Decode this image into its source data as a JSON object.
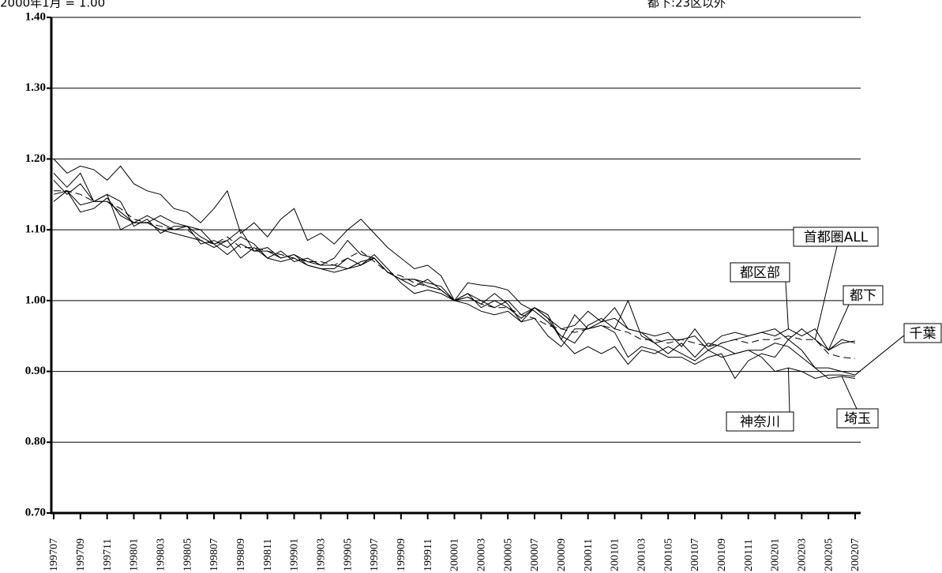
{
  "chart_data": {
    "type": "line",
    "note_left": "2000年1月 = 1.00",
    "note_right": "都下:23区以外",
    "categories": [
      "199707",
      null,
      "199709",
      null,
      "199711",
      null,
      "199801",
      null,
      "199803",
      null,
      "199805",
      null,
      "199807",
      null,
      "199809",
      null,
      "199811",
      null,
      "199901",
      null,
      "199903",
      null,
      "199905",
      null,
      "199907",
      null,
      "199909",
      null,
      "199911",
      null,
      "200001",
      null,
      "200003",
      null,
      "200005",
      null,
      "200007",
      null,
      "200009",
      null,
      "200011",
      null,
      "200101",
      null,
      "200103",
      null,
      "200105",
      null,
      "200107",
      null,
      "200109",
      null,
      "200111",
      null,
      "200201",
      null,
      "200203",
      null,
      "200205",
      null,
      "200207"
    ],
    "ylim": [
      0.7,
      1.4
    ],
    "yticks": [
      {
        "value": 0.7,
        "label": "0.70"
      },
      {
        "value": 0.8,
        "label": "0.80"
      },
      {
        "value": 0.9,
        "label": "0.90"
      },
      {
        "value": 1.0,
        "label": "1.00"
      },
      {
        "value": 1.1,
        "label": "1.10"
      },
      {
        "value": 1.2,
        "label": "1.20"
      },
      {
        "value": 1.3,
        "label": "1.30"
      },
      {
        "value": 1.4,
        "label": "1.40"
      }
    ],
    "grid": true,
    "series": [
      {
        "name": "首都圏ALL",
        "color": "#000000",
        "dashed": true,
        "values": [
          1.155,
          1.155,
          1.15,
          1.14,
          1.14,
          1.13,
          1.115,
          1.11,
          1.105,
          1.1,
          1.1,
          1.085,
          1.08,
          1.09,
          1.075,
          1.075,
          1.07,
          1.065,
          1.06,
          1.055,
          1.055,
          1.05,
          1.06,
          1.07,
          1.055,
          1.04,
          1.035,
          1.025,
          1.02,
          1.015,
          1.0,
          1.005,
          0.995,
          0.99,
          0.99,
          0.98,
          0.975,
          0.965,
          0.96,
          0.955,
          0.96,
          0.965,
          0.96,
          0.955,
          0.945,
          0.945,
          0.94,
          0.945,
          0.94,
          0.935,
          0.94,
          0.945,
          0.94,
          0.945,
          0.945,
          0.95,
          0.945,
          0.945,
          0.925,
          0.92,
          0.918
        ]
      },
      {
        "name": "都区部",
        "color": "#000000",
        "dashed": false,
        "values": [
          1.2,
          1.18,
          1.19,
          1.185,
          1.17,
          1.19,
          1.165,
          1.155,
          1.15,
          1.13,
          1.125,
          1.11,
          1.13,
          1.155,
          1.095,
          1.11,
          1.09,
          1.115,
          1.13,
          1.085,
          1.095,
          1.08,
          1.1,
          1.115,
          1.095,
          1.075,
          1.06,
          1.045,
          1.05,
          1.035,
          1.0,
          1.025,
          1.022,
          1.02,
          1.015,
          0.995,
          0.985,
          0.97,
          0.95,
          0.94,
          0.965,
          0.975,
          0.96,
          1.0,
          0.95,
          0.94,
          0.945,
          0.945,
          0.95,
          0.93,
          0.94,
          0.945,
          0.95,
          0.955,
          0.95,
          0.96,
          0.95,
          0.96,
          0.93,
          0.945,
          0.94
        ]
      },
      {
        "name": "都下",
        "color": "#000000",
        "dashed": false,
        "values": [
          1.18,
          1.16,
          1.18,
          1.14,
          1.15,
          1.1,
          1.11,
          1.11,
          1.12,
          1.11,
          1.105,
          1.09,
          1.08,
          1.085,
          1.1,
          1.07,
          1.075,
          1.06,
          1.065,
          1.055,
          1.05,
          1.06,
          1.085,
          1.065,
          1.06,
          1.04,
          1.03,
          1.03,
          1.025,
          1.02,
          1.0,
          1.01,
          0.99,
          1.0,
          0.99,
          0.975,
          0.99,
          0.975,
          0.96,
          0.965,
          0.985,
          0.97,
          0.99,
          0.96,
          0.955,
          0.95,
          0.955,
          0.935,
          0.96,
          0.935,
          0.95,
          0.955,
          0.95,
          0.955,
          0.96,
          0.945,
          0.96,
          0.945,
          0.93,
          0.94,
          0.943
        ]
      },
      {
        "name": "千葉",
        "color": "#000000",
        "dashed": false,
        "values": [
          1.15,
          1.155,
          1.135,
          1.14,
          1.14,
          1.125,
          1.11,
          1.12,
          1.11,
          1.1,
          1.105,
          1.1,
          1.08,
          1.065,
          1.08,
          1.07,
          1.07,
          1.06,
          1.065,
          1.05,
          1.045,
          1.045,
          1.06,
          1.05,
          1.06,
          1.04,
          1.03,
          1.03,
          1.02,
          1.015,
          1.0,
          1.01,
          1.0,
          0.99,
          1.0,
          0.98,
          0.99,
          0.975,
          0.945,
          0.98,
          0.96,
          0.97,
          0.975,
          0.96,
          0.955,
          0.94,
          0.925,
          0.94,
          0.92,
          0.94,
          0.935,
          0.925,
          0.93,
          0.93,
          0.94,
          0.935,
          0.92,
          0.905,
          0.905,
          0.9,
          0.895
        ]
      },
      {
        "name": "埼玉",
        "color": "#000000",
        "dashed": false,
        "values": [
          1.14,
          1.155,
          1.125,
          1.13,
          1.145,
          1.12,
          1.11,
          1.11,
          1.1,
          1.095,
          1.09,
          1.085,
          1.075,
          1.085,
          1.06,
          1.075,
          1.06,
          1.055,
          1.06,
          1.05,
          1.045,
          1.04,
          1.045,
          1.055,
          1.06,
          1.04,
          1.03,
          1.02,
          1.03,
          1.015,
          1.0,
          1.005,
          0.995,
          1.01,
          0.995,
          0.97,
          0.975,
          0.95,
          0.935,
          0.96,
          0.96,
          0.965,
          0.955,
          0.92,
          0.935,
          0.93,
          0.92,
          0.92,
          0.91,
          0.92,
          0.925,
          0.89,
          0.915,
          0.925,
          0.92,
          0.945,
          0.93,
          0.905,
          0.89,
          0.893,
          0.89
        ]
      },
      {
        "name": "神奈川",
        "color": "#000000",
        "dashed": false,
        "values": [
          1.17,
          1.15,
          1.165,
          1.14,
          1.15,
          1.14,
          1.105,
          1.115,
          1.095,
          1.105,
          1.105,
          1.08,
          1.085,
          1.075,
          1.09,
          1.08,
          1.06,
          1.07,
          1.055,
          1.06,
          1.05,
          1.05,
          1.045,
          1.05,
          1.065,
          1.045,
          1.025,
          1.01,
          1.015,
          1.01,
          1.0,
          0.995,
          0.985,
          0.98,
          0.985,
          0.97,
          0.99,
          0.98,
          0.945,
          0.925,
          0.935,
          0.925,
          0.935,
          0.91,
          0.93,
          0.925,
          0.935,
          0.925,
          0.915,
          0.93,
          0.92,
          0.925,
          0.93,
          0.92,
          0.9,
          0.905,
          0.9,
          0.89,
          0.895,
          0.895,
          0.893
        ]
      }
    ]
  }
}
